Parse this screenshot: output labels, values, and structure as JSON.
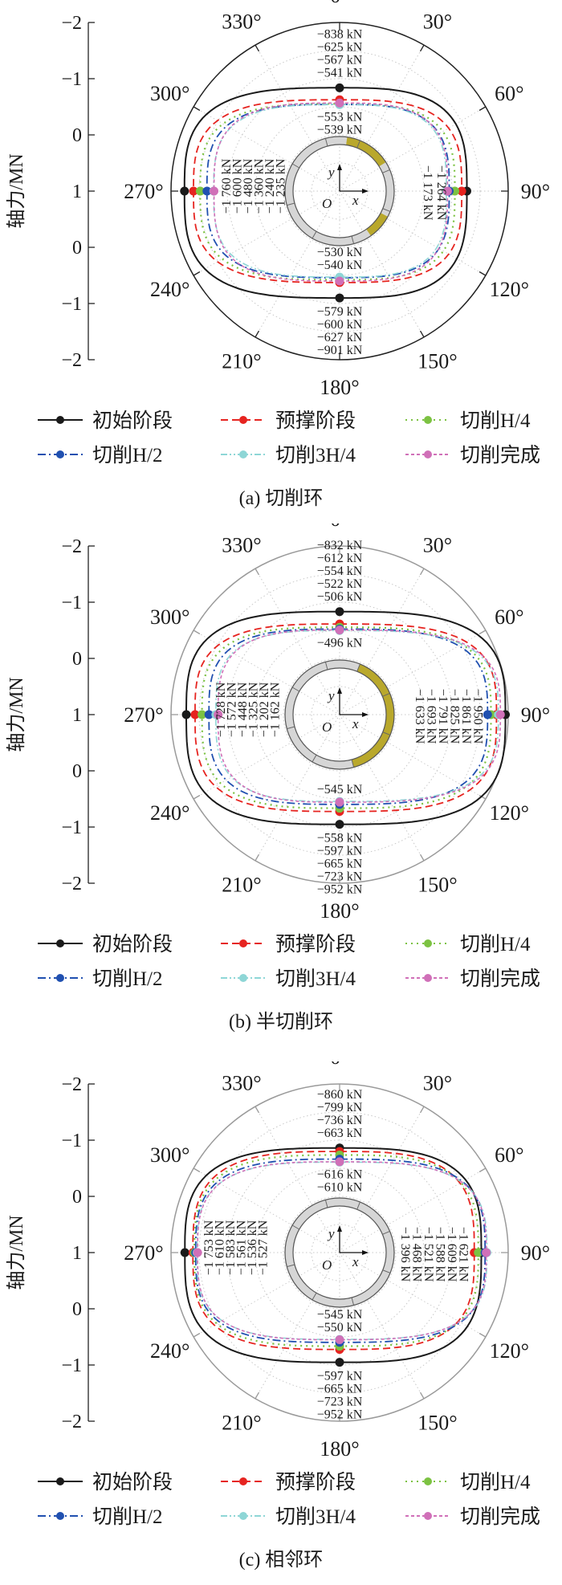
{
  "y_axis": {
    "title": "轴力/MN",
    "ticks": [
      "−2",
      "−1",
      "0",
      "1",
      "0",
      "−1",
      "−2"
    ]
  },
  "angle_labels": [
    "0°",
    "30°",
    "60°",
    "90°",
    "120°",
    "150°",
    "180°",
    "210°",
    "240°",
    "270°",
    "300°",
    "330°"
  ],
  "inset_labels": {
    "x": "x",
    "y": "y",
    "origin": "O"
  },
  "legend": [
    "初始阶段",
    "预撑阶段",
    "切削H/4",
    "切削H/2",
    "切削3H/4",
    "切削完成"
  ],
  "series_styles": [
    {
      "color": "#1a1a1a",
      "label_color": "#1a1a1a"
    },
    {
      "color": "#e62420",
      "label_color": "#e62420"
    },
    {
      "color": "#7cc242",
      "label_color": "#12a04a"
    },
    {
      "color": "#2050b0",
      "label_color": "#1c2c8c"
    },
    {
      "color": "#8ed6d6",
      "label_color": "#4ec6d2"
    },
    {
      "color": "#d070b8",
      "label_color": "#b4469c"
    }
  ],
  "chart_data": [
    {
      "type": "polar",
      "caption": "(a)  切削环",
      "radial_range_center_to_edge": [
        1,
        -2
      ],
      "unit": "MN",
      "ring_highlight_deg": [
        [
          8,
          58
        ],
        [
          118,
          145
        ]
      ],
      "series": [
        {
          "name": "初始阶段",
          "values": {
            "0": -0.838,
            "90": -1.264,
            "180": -0.901,
            "270": -1.76
          }
        },
        {
          "name": "预撑阶段",
          "values": {
            "0": -0.625,
            "90": -1.173,
            "180": -0.627,
            "270": -1.6
          }
        },
        {
          "name": "切削H/4",
          "values": {
            "0": -0.553,
            "90": -1.05,
            "180": -0.579,
            "270": -1.48
          }
        },
        {
          "name": "切削H/2",
          "values": {
            "0": -0.541,
            "90": -0.95,
            "180": -0.54,
            "270": -1.36
          }
        },
        {
          "name": "切削3H/4",
          "values": {
            "0": -0.539,
            "90": -0.9,
            "180": -0.53,
            "270": -1.24
          }
        },
        {
          "name": "切削完成",
          "values": {
            "0": -0.567,
            "90": -0.92,
            "180": -0.6,
            "270": -1.235
          }
        }
      ],
      "labels": {
        "top_out": [
          {
            "s": 0,
            "text": "−838 kN"
          },
          {
            "s": 1,
            "text": "−625 kN"
          },
          {
            "s": 5,
            "text": "−567 kN"
          },
          {
            "s": 3,
            "text": "−541 kN"
          }
        ],
        "top_in": [
          {
            "s": 2,
            "text": "−553 kN"
          },
          {
            "s": 4,
            "text": "−539 kN"
          }
        ],
        "bottom_in": [
          {
            "s": 4,
            "text": "−530 kN"
          },
          {
            "s": 3,
            "text": "−540 kN"
          }
        ],
        "bottom_out": [
          {
            "s": 2,
            "text": "−579 kN"
          },
          {
            "s": 5,
            "text": "−600 kN"
          },
          {
            "s": 1,
            "text": "−627 kN"
          },
          {
            "s": 0,
            "text": "−901 kN"
          }
        ],
        "left": [
          {
            "s": 0,
            "text": "−1 760 kN"
          },
          {
            "s": 1,
            "text": "−1 600 kN"
          },
          {
            "s": 2,
            "text": "−1 480 kN"
          },
          {
            "s": 3,
            "text": "−1 360 kN"
          },
          {
            "s": 4,
            "text": "−1 240 kN"
          },
          {
            "s": 5,
            "text": "−1 235 kN"
          }
        ],
        "right": [
          {
            "s": 1,
            "text": "−1 173 kN"
          },
          {
            "s": 0,
            "text": "−1 264 kN"
          }
        ]
      }
    },
    {
      "type": "polar",
      "caption": "(b)  半切削环",
      "radial_range_center_to_edge": [
        1,
        -2
      ],
      "unit": "MN",
      "ring_highlight_deg": [
        [
          22,
          165
        ]
      ],
      "series": [
        {
          "name": "初始阶段",
          "values": {
            "0": -0.832,
            "90": -1.95,
            "180": -0.952,
            "270": -1.728
          }
        },
        {
          "name": "预撑阶段",
          "values": {
            "0": -0.612,
            "90": -1.791,
            "180": -0.723,
            "270": -1.572
          }
        },
        {
          "name": "切削H/4",
          "values": {
            "0": -0.554,
            "90": -1.693,
            "180": -0.665,
            "270": -1.448
          }
        },
        {
          "name": "切削H/2",
          "values": {
            "0": -0.522,
            "90": -1.633,
            "180": -0.597,
            "270": -1.325
          }
        },
        {
          "name": "切削3H/4",
          "values": {
            "0": -0.496,
            "90": -1.825,
            "180": -0.545,
            "270": -1.202
          }
        },
        {
          "name": "切削完成",
          "values": {
            "0": -0.506,
            "90": -1.861,
            "180": -0.558,
            "270": -1.162
          }
        }
      ],
      "labels": {
        "top_out": [
          {
            "s": 0,
            "text": "−832 kN"
          },
          {
            "s": 1,
            "text": "−612 kN"
          },
          {
            "s": 2,
            "text": "−554 kN"
          },
          {
            "s": 3,
            "text": "−522 kN"
          },
          {
            "s": 5,
            "text": "−506 kN"
          }
        ],
        "top_in": [
          {
            "s": 4,
            "text": "−496 kN"
          }
        ],
        "bottom_in": [
          {
            "s": 4,
            "text": "−545 kN"
          }
        ],
        "bottom_out": [
          {
            "s": 5,
            "text": "−558 kN"
          },
          {
            "s": 3,
            "text": "−597 kN"
          },
          {
            "s": 2,
            "text": "−665 kN"
          },
          {
            "s": 1,
            "text": "−723 kN"
          },
          {
            "s": 0,
            "text": "−952 kN"
          }
        ],
        "left": [
          {
            "s": 0,
            "text": "−1 728 kN"
          },
          {
            "s": 1,
            "text": "−1 572 kN"
          },
          {
            "s": 2,
            "text": "−1 448 kN"
          },
          {
            "s": 3,
            "text": "−1 325 kN"
          },
          {
            "s": 4,
            "text": "−1 202 kN"
          },
          {
            "s": 5,
            "text": "−1 162 kN"
          }
        ],
        "right": [
          {
            "s": 3,
            "text": "−1 633 kN"
          },
          {
            "s": 2,
            "text": "−1 693 kN"
          },
          {
            "s": 1,
            "text": "−1 791 kN"
          },
          {
            "s": 4,
            "text": "−1 825 kN"
          },
          {
            "s": 5,
            "text": "−1 861 kN"
          },
          {
            "s": 0,
            "text": "−1 950 kN"
          }
        ]
      }
    },
    {
      "type": "polar",
      "caption": "(c)  相邻环",
      "radial_range_center_to_edge": [
        1,
        -2
      ],
      "unit": "MN",
      "ring_highlight_deg": [],
      "series": [
        {
          "name": "初始阶段",
          "values": {
            "0": -0.86,
            "90": -1.521,
            "180": -0.952,
            "270": -1.753
          }
        },
        {
          "name": "预撑阶段",
          "values": {
            "0": -0.799,
            "90": -1.396,
            "180": -0.723,
            "270": -1.61
          }
        },
        {
          "name": "切削H/4",
          "values": {
            "0": -0.736,
            "90": -1.468,
            "180": -0.665,
            "270": -1.583
          }
        },
        {
          "name": "切削H/2",
          "values": {
            "0": -0.663,
            "90": -1.588,
            "180": -0.597,
            "270": -1.561
          }
        },
        {
          "name": "切削3H/4",
          "values": {
            "0": -0.61,
            "90": -1.621,
            "180": -0.545,
            "270": -1.536
          }
        },
        {
          "name": "切削完成",
          "values": {
            "0": -0.616,
            "90": -1.609,
            "180": -0.55,
            "270": -1.527
          }
        }
      ],
      "labels": {
        "top_out": [
          {
            "s": 0,
            "text": "−860 kN"
          },
          {
            "s": 1,
            "text": "−799 kN"
          },
          {
            "s": 2,
            "text": "−736 kN"
          },
          {
            "s": 3,
            "text": "−663 kN"
          }
        ],
        "top_in": [
          {
            "s": 5,
            "text": "−616 kN"
          },
          {
            "s": 4,
            "text": "−610 kN"
          }
        ],
        "bottom_in": [
          {
            "s": 4,
            "text": "−545 kN"
          },
          {
            "s": 5,
            "text": "−550 kN"
          }
        ],
        "bottom_out": [
          {
            "s": 3,
            "text": "−597 kN"
          },
          {
            "s": 2,
            "text": "−665 kN"
          },
          {
            "s": 1,
            "text": "−723 kN"
          },
          {
            "s": 0,
            "text": "−952 kN"
          }
        ],
        "left": [
          {
            "s": 0,
            "text": "−1 753 kN"
          },
          {
            "s": 1,
            "text": "−1 610 kN"
          },
          {
            "s": 2,
            "text": "−1 583 kN"
          },
          {
            "s": 3,
            "text": "−1 561 kN"
          },
          {
            "s": 4,
            "text": "−1 536 kN"
          },
          {
            "s": 5,
            "text": "−1 527 kN"
          }
        ],
        "right": [
          {
            "s": 1,
            "text": "−1 396 kN"
          },
          {
            "s": 2,
            "text": "−1 468 kN"
          },
          {
            "s": 0,
            "text": "−1 521 kN"
          },
          {
            "s": 3,
            "text": "−1 588 kN"
          },
          {
            "s": 5,
            "text": "−1 609 kN"
          },
          {
            "s": 4,
            "text": "−1 621 kN"
          }
        ]
      }
    }
  ]
}
